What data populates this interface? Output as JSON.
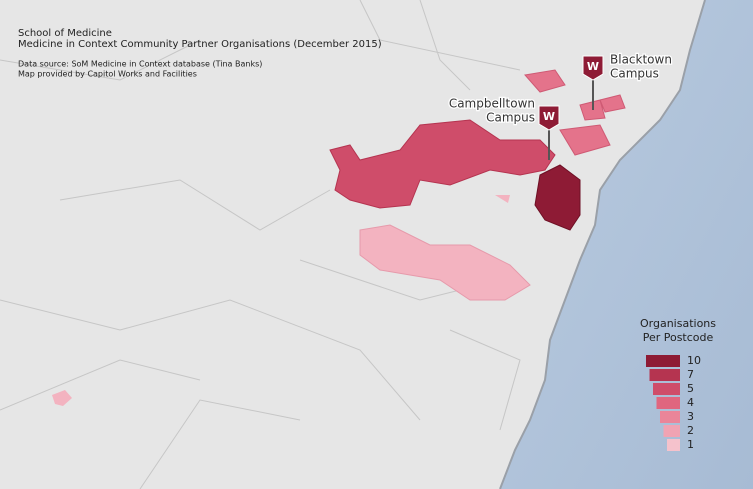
{
  "header": {
    "title": "School of Medicine",
    "subtitle": "Medicine in Context Community Partner Organisations (December 2015)",
    "source": "Data source: SoM Medicine in Context database (Tina Banks)",
    "credit": "Map provided by Capitol Works and Facilities"
  },
  "campuses": [
    {
      "badge": "W",
      "label_lines": [
        "Blacktown",
        "Campus"
      ]
    },
    {
      "badge": "W",
      "label_lines": [
        "Campbelltown",
        "Campus"
      ]
    }
  ],
  "legend": {
    "title_lines": [
      "Organisations",
      "Per Postcode"
    ],
    "levels": [
      10,
      7,
      5,
      4,
      3,
      2,
      1
    ]
  }
}
